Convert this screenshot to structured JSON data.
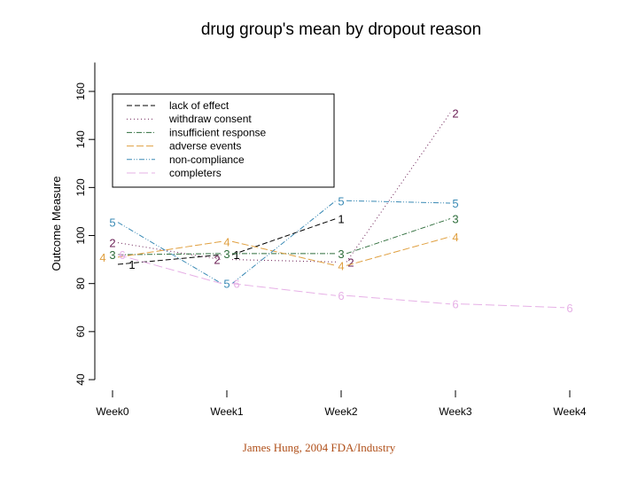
{
  "chart_data": {
    "type": "line",
    "title": "drug group's mean by dropout reason",
    "xlabel": "",
    "ylabel": "Outcome Measure",
    "categories": [
      "Week0",
      "Week1",
      "Week2",
      "Week3",
      "Week4"
    ],
    "yticks": [
      40,
      60,
      80,
      100,
      120,
      140,
      160
    ],
    "ylim": [
      40,
      172
    ],
    "grid": false,
    "legend_position": "top-left",
    "series": [
      {
        "name": "lack of effect",
        "marker": "1",
        "color": "#000000",
        "dash": "6,3",
        "values": [
          88,
          92,
          107,
          null,
          null
        ]
      },
      {
        "name": "withdraw consent",
        "marker": "2",
        "color": "#6b1f55",
        "dash": "1,3",
        "values": [
          97,
          90,
          89,
          151,
          null
        ]
      },
      {
        "name": "insufficient response",
        "marker": "3",
        "color": "#2f6e3c",
        "dash": "6,2,1,2",
        "values": [
          92,
          92.5,
          92.5,
          107,
          null
        ]
      },
      {
        "name": "adverse events",
        "marker": "4",
        "color": "#e0a040",
        "dash": "8,3",
        "values": [
          91,
          97.5,
          87.5,
          99.5,
          null
        ]
      },
      {
        "name": "non-compliance",
        "marker": "5",
        "color": "#3a8ab5",
        "dash": "6,2,1,2,1,2",
        "values": [
          105.5,
          80,
          114.5,
          113.5,
          null
        ]
      },
      {
        "name": "completers",
        "marker": "6",
        "color": "#e6b0e6",
        "dash": "10,4",
        "values": [
          92,
          80,
          75,
          71.5,
          70
        ]
      }
    ]
  },
  "footer": "James Hung, 2004 FDA/Industry"
}
